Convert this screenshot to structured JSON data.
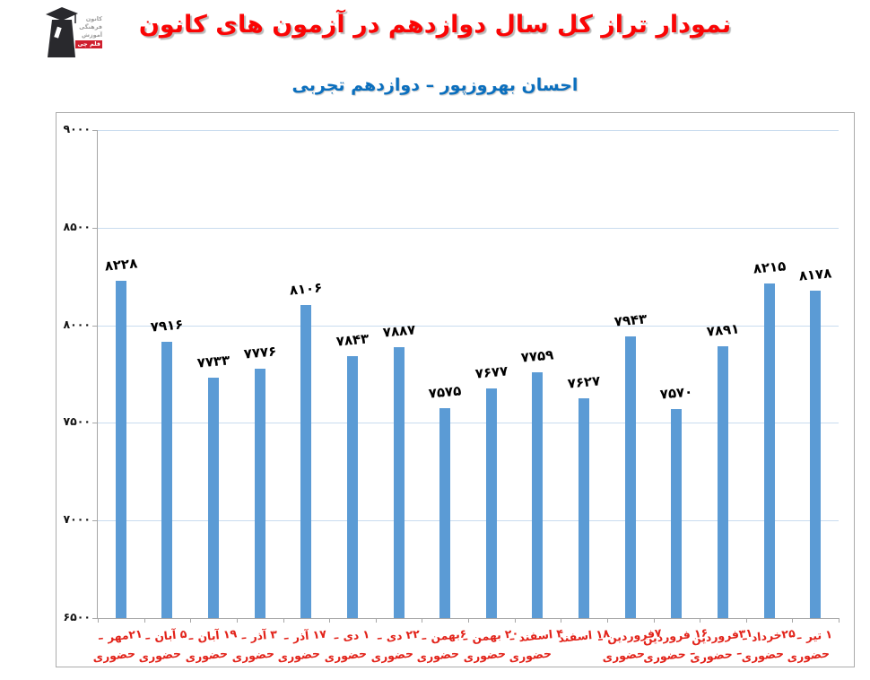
{
  "page": {
    "title": "نمودار تراز کل سال دوازدهم در آزمون های کانون",
    "subtitle": "احسان بهروزپور – دوازدهم تجربی",
    "title_color": "#fa0505",
    "subtitle_color": "#0b6fbe"
  },
  "logo": {
    "line1": "کانون",
    "line2": "فرهنگی",
    "line3": "آموزش",
    "badge": "قلم چی"
  },
  "chart_data": {
    "type": "bar",
    "title": "نمودار تراز کل سال دوازدهم در آزمون های کانون",
    "subtitle": "احسان بهروزپور – دوازدهم تجربی",
    "ylim": [
      6500,
      9000
    ],
    "grid": true,
    "bar_color": "#5b9bd5",
    "grid_color": "#c9dcef",
    "axis_color": "#a6a6a6",
    "value_label_color": "#000000",
    "x_label_color": "#e2231a",
    "y_ticks": [
      {
        "label": "۹۰۰۰",
        "value": 9000
      },
      {
        "label": "۸۵۰۰",
        "value": 8500
      },
      {
        "label": "۸۰۰۰",
        "value": 8000
      },
      {
        "label": "۷۵۰۰",
        "value": 7500
      },
      {
        "label": "۷۰۰۰",
        "value": 7000
      },
      {
        "label": "۶۵۰۰",
        "value": 6500
      }
    ],
    "categories": [
      "۲۱مهر – حضوری",
      "۵ آبان – حضوری",
      "۱۹ آبان – حضوری",
      "۳ آذر – حضوری",
      "۱۷ آذر – حضوری",
      "۱ دی – حضوری",
      "۲۲ دی – حضوری",
      "۶بهمن – حضوری",
      "۲۰ بهمن – حضوری",
      "۴ اسفند – حضوری",
      "۱۸ اسفند",
      "۷فروردین – حضوری",
      "۱۶ فروردین – حضوری",
      "۳۱فروردین – حضوری",
      "۲۵خرداد – حضوری",
      "۱ تیر – حضوری"
    ],
    "values": [
      8228,
      7916,
      7733,
      7776,
      8106,
      7843,
      7887,
      7575,
      7677,
      7759,
      7627,
      7943,
      7570,
      7891,
      8215,
      8178
    ],
    "bars": [
      {
        "value": 8228,
        "value_fa": "۸۲۲۸",
        "date": "۲۱مهر –",
        "mode": "حضوری"
      },
      {
        "value": 7916,
        "value_fa": "۷۹۱۶",
        "date": "۵ آبان –",
        "mode": "حضوری"
      },
      {
        "value": 7733,
        "value_fa": "۷۷۳۳",
        "date": "۱۹ آبان –",
        "mode": "حضوری"
      },
      {
        "value": 7776,
        "value_fa": "۷۷۷۶",
        "date": "۳ آذر –",
        "mode": "حضوری"
      },
      {
        "value": 8106,
        "value_fa": "۸۱۰۶",
        "date": "۱۷ آذر –",
        "mode": "حضوری"
      },
      {
        "value": 7843,
        "value_fa": "۷۸۴۳",
        "date": "۱ دی –",
        "mode": "حضوری"
      },
      {
        "value": 7887,
        "value_fa": "۷۸۸۷",
        "date": "۲۲ دی –",
        "mode": "حضوری"
      },
      {
        "value": 7575,
        "value_fa": "۷۵۷۵",
        "date": "۶بهمن –",
        "mode": "حضوری"
      },
      {
        "value": 7677,
        "value_fa": "۷۶۷۷",
        "date": "۲۰ بهمن –",
        "mode": "حضوری"
      },
      {
        "value": 7759,
        "value_fa": "۷۷۵۹",
        "date": "۴ اسفند –",
        "mode": "حضوری"
      },
      {
        "value": 7627,
        "value_fa": "۷۶۲۷",
        "date": "۱۸ اسفند",
        "mode": ""
      },
      {
        "value": 7943,
        "value_fa": "۷۹۴۳",
        "date": "۷فروردین –",
        "mode": "حضوری"
      },
      {
        "value": 7570,
        "value_fa": "۷۵۷۰",
        "date": "۱۶ فروردین",
        "mode": "– حضوری"
      },
      {
        "value": 7891,
        "value_fa": "۷۸۹۱",
        "date": "۳۱فروردین",
        "mode": "– حضوری"
      },
      {
        "value": 8215,
        "value_fa": "۸۲۱۵",
        "date": "۲۵خرداد –",
        "mode": "حضوری"
      },
      {
        "value": 8178,
        "value_fa": "۸۱۷۸",
        "date": "۱ تیر –",
        "mode": "حضوری"
      }
    ]
  }
}
